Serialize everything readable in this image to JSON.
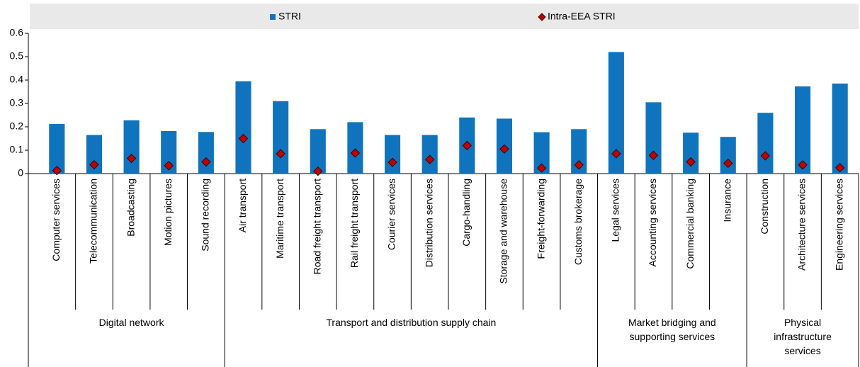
{
  "chart_data": {
    "type": "bar_scatter",
    "categories": [
      "Computer services",
      "Telecommunication",
      "Broadcasting",
      "Motion pictures",
      "Sound recording",
      "Air transport",
      "Maritime transport",
      "Road freight transport",
      "Rail freight transport",
      "Courier services",
      "Distribution services",
      "Cargo-handling",
      "Storage and warehouse",
      "Freight-forwarding",
      "Customs brokerage",
      "Legal services",
      "Accounting services",
      "Commercial banking",
      "Insurance",
      "Construction",
      "Architecture services",
      "Engineering services"
    ],
    "category_groups": [
      {
        "label": [
          "Digital network"
        ],
        "size": 5
      },
      {
        "label": [
          "Transport and distribution supply chain"
        ],
        "size": 10
      },
      {
        "label": [
          "Market bridging and",
          "supporting services"
        ],
        "size": 4
      },
      {
        "label": [
          "Physical",
          "infrastructure",
          "services"
        ],
        "size": 3
      }
    ],
    "series": [
      {
        "name": "STRI",
        "kind": "bar",
        "color": "#0f74bd",
        "values": [
          0.212,
          0.165,
          0.228,
          0.182,
          0.178,
          0.395,
          0.31,
          0.19,
          0.22,
          0.165,
          0.165,
          0.24,
          0.235,
          0.177,
          0.19,
          0.52,
          0.305,
          0.175,
          0.157,
          0.26,
          0.373,
          0.385
        ]
      },
      {
        "name": "Intra-EEA STRI",
        "kind": "diamond",
        "color": "#c00000",
        "values": [
          0.013,
          0.038,
          0.065,
          0.034,
          0.05,
          0.15,
          0.085,
          0.01,
          0.088,
          0.048,
          0.06,
          0.12,
          0.105,
          0.024,
          0.037,
          0.085,
          0.078,
          0.05,
          0.044,
          0.076,
          0.037,
          0.025
        ]
      }
    ],
    "ylim": [
      0,
      0.6
    ],
    "yticks": [
      0,
      0.1,
      0.2,
      0.3,
      0.4,
      0.5,
      0.6
    ],
    "grid": false
  }
}
